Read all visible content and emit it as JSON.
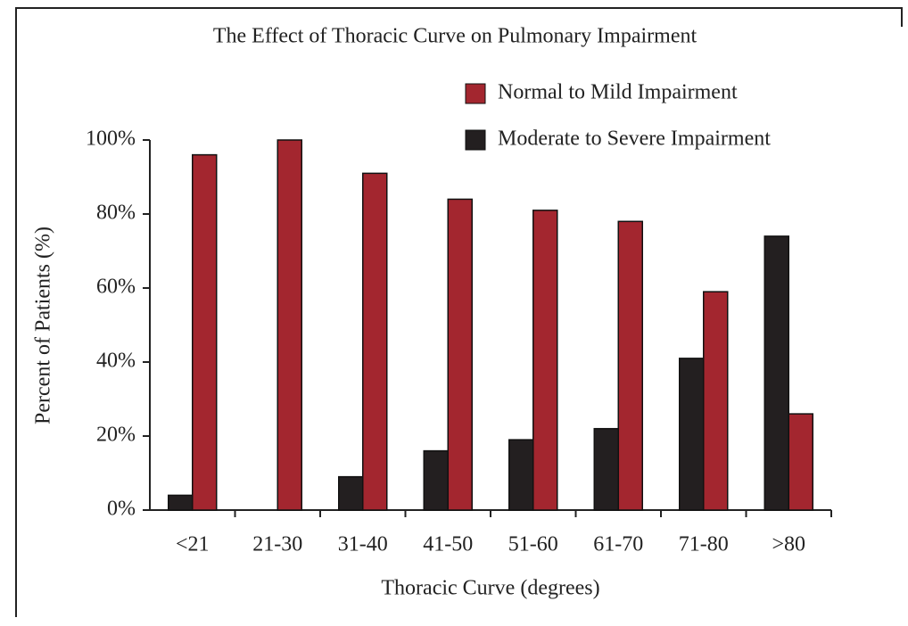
{
  "chart_data": {
    "type": "bar",
    "title": "The Effect of Thoracic Curve on Pulmonary Impairment",
    "xlabel": "Thoracic Curve (degrees)",
    "ylabel": "Percent of Patients (%)",
    "categories": [
      "<21",
      "21-30",
      "31-40",
      "41-50",
      "51-60",
      "61-70",
      "71-80",
      ">80"
    ],
    "series": [
      {
        "name": "Normal to Mild Impairment",
        "color": "#a3262f",
        "values": [
          96,
          100,
          91,
          84,
          81,
          78,
          59,
          26
        ]
      },
      {
        "name": "Moderate to Severe Impairment",
        "color": "#231f20",
        "values": [
          4,
          0,
          9,
          16,
          19,
          22,
          41,
          74
        ]
      }
    ],
    "ylim": [
      0,
      100
    ],
    "yticks": [
      {
        "value": 0,
        "label": "0%"
      },
      {
        "value": 20,
        "label": "20%"
      },
      {
        "value": 40,
        "label": "40%"
      },
      {
        "value": 60,
        "label": "60%"
      },
      {
        "value": 80,
        "label": "80%"
      },
      {
        "value": 100,
        "label": "100%"
      }
    ],
    "grid": false,
    "legend": "top-right"
  }
}
